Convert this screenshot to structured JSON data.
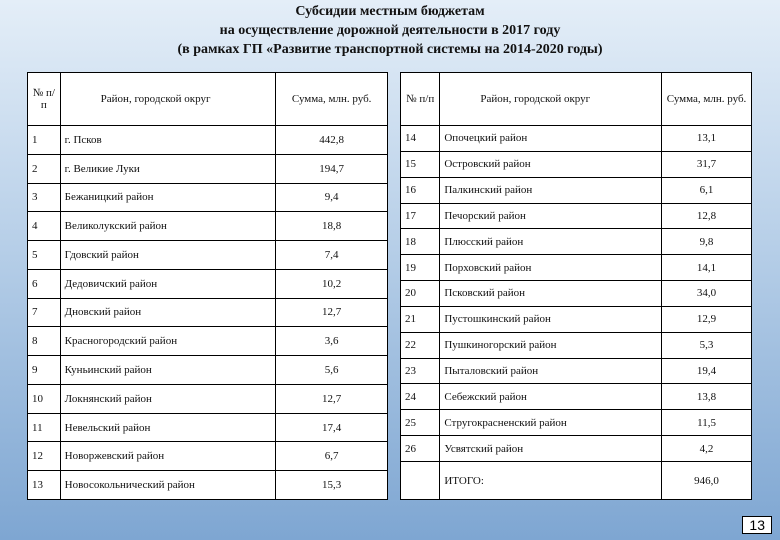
{
  "header": {
    "title_lines": [
      "Субсидии местным бюджетам",
      "на осуществление дорожной деятельности в 2017 году",
      "(в рамках ГП «Развитие транспортной системы на 2014-2020 годы)"
    ]
  },
  "columns": [
    "№ п/п",
    "Район, городской округ",
    "Сумма, млн. руб."
  ],
  "left_table": {
    "rows": [
      [
        "1",
        "г. Псков",
        "442,8"
      ],
      [
        "2",
        "г. Великие Луки",
        "194,7"
      ],
      [
        "3",
        "Бежаницкий район",
        "9,4"
      ],
      [
        "4",
        "Великолукский район",
        "18,8"
      ],
      [
        "5",
        "Гдовский район",
        "7,4"
      ],
      [
        "6",
        "Дедовичский район",
        "10,2"
      ],
      [
        "7",
        "Дновский район",
        "12,7"
      ],
      [
        "8",
        "Красногородский район",
        "3,6"
      ],
      [
        "9",
        "Куньинский район",
        "5,6"
      ],
      [
        "10",
        "Локнянский район",
        "12,7"
      ],
      [
        "11",
        "Невельский район",
        "17,4"
      ],
      [
        "12",
        "Новоржевский район",
        "6,7"
      ],
      [
        "13",
        "Новосокольнический район",
        "15,3"
      ]
    ]
  },
  "right_table": {
    "rows": [
      [
        "14",
        "Опочецкий район",
        "13,1"
      ],
      [
        "15",
        "Островский район",
        "31,7"
      ],
      [
        "16",
        "Палкинский район",
        "6,1"
      ],
      [
        "17",
        "Печорский район",
        "12,8"
      ],
      [
        "18",
        "Плюсский район",
        "9,8"
      ],
      [
        "19",
        "Порховский район",
        "14,1"
      ],
      [
        "20",
        "Псковский район",
        "34,0"
      ],
      [
        "21",
        "Пустошкинский район",
        "12,9"
      ],
      [
        "22",
        "Пушкиногорский район",
        "5,3"
      ],
      [
        "23",
        "Пыталовский район",
        "19,4"
      ],
      [
        "24",
        "Себежский район",
        "13,8"
      ],
      [
        "25",
        "Стругокрасненский район",
        "11,5"
      ],
      [
        "26",
        "Усвятский район",
        "4,2"
      ]
    ],
    "total": {
      "label": "ИТОГО:",
      "value": "946,0"
    }
  },
  "page_number": "13"
}
